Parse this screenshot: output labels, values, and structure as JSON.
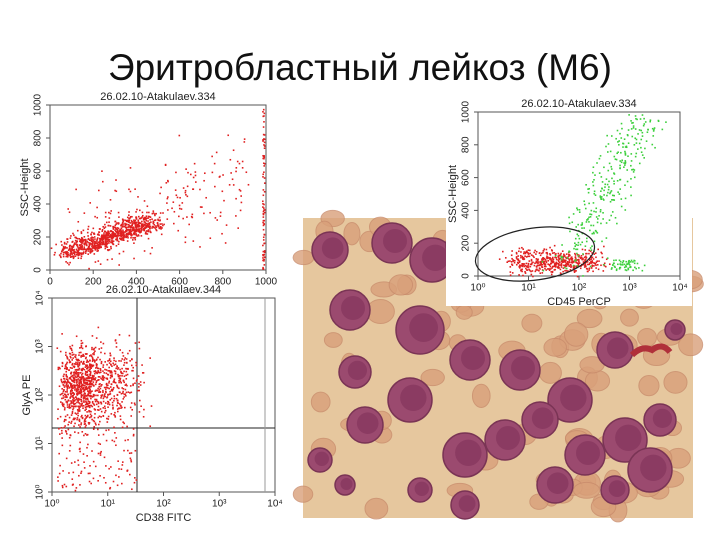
{
  "title": "Эритробластный лейкоз (M6)",
  "plots": [
    {
      "title": "26.02.10-Atakulaev.334",
      "y_label": "SSC-Height",
      "xscale": "linear",
      "yscale": "linear",
      "xlim": [
        0,
        1000
      ],
      "ylim": [
        0,
        1000
      ],
      "xticks": [
        0,
        200,
        400,
        600,
        800,
        1000
      ],
      "yticks": [
        0,
        200,
        400,
        600,
        800,
        1000
      ]
    },
    {
      "title": "26.02.10-Atakulaev.344",
      "x_label": "CD38 FITC",
      "y_label": "GlyA PE",
      "xscale": "log",
      "yscale": "log",
      "xlim": [
        1,
        10000
      ],
      "ylim": [
        1,
        10000
      ],
      "xticks": [
        {
          "value": 1,
          "label": "10⁰"
        },
        {
          "value": 10,
          "label": "10¹"
        },
        {
          "value": 100,
          "label": "10²"
        },
        {
          "value": 1000,
          "label": "10³"
        },
        {
          "value": 10000,
          "label": "10⁴"
        }
      ],
      "yticks": [
        {
          "value": 1,
          "label": "10⁰"
        },
        {
          "value": 10,
          "label": "10¹"
        },
        {
          "value": 100,
          "label": "10²"
        },
        {
          "value": 1000,
          "label": "10³"
        },
        {
          "value": 10000,
          "label": "10⁴"
        }
      ]
    },
    {
      "title": "26.02.10-Atakulaev.334",
      "x_label": "CD45 PerCP",
      "y_label": "SSC-Height",
      "xscale": "log",
      "yscale": "linear",
      "xlim": [
        1,
        10000
      ],
      "ylim": [
        0,
        1000
      ],
      "xticks": [
        {
          "value": 1,
          "label": "10⁰"
        },
        {
          "value": 10,
          "label": "10¹"
        },
        {
          "value": 100,
          "label": "10²"
        },
        {
          "value": 1000,
          "label": "10³"
        },
        {
          "value": 10000,
          "label": "10⁴"
        }
      ],
      "yticks": [
        0,
        200,
        400,
        600,
        800,
        1000
      ]
    }
  ]
}
